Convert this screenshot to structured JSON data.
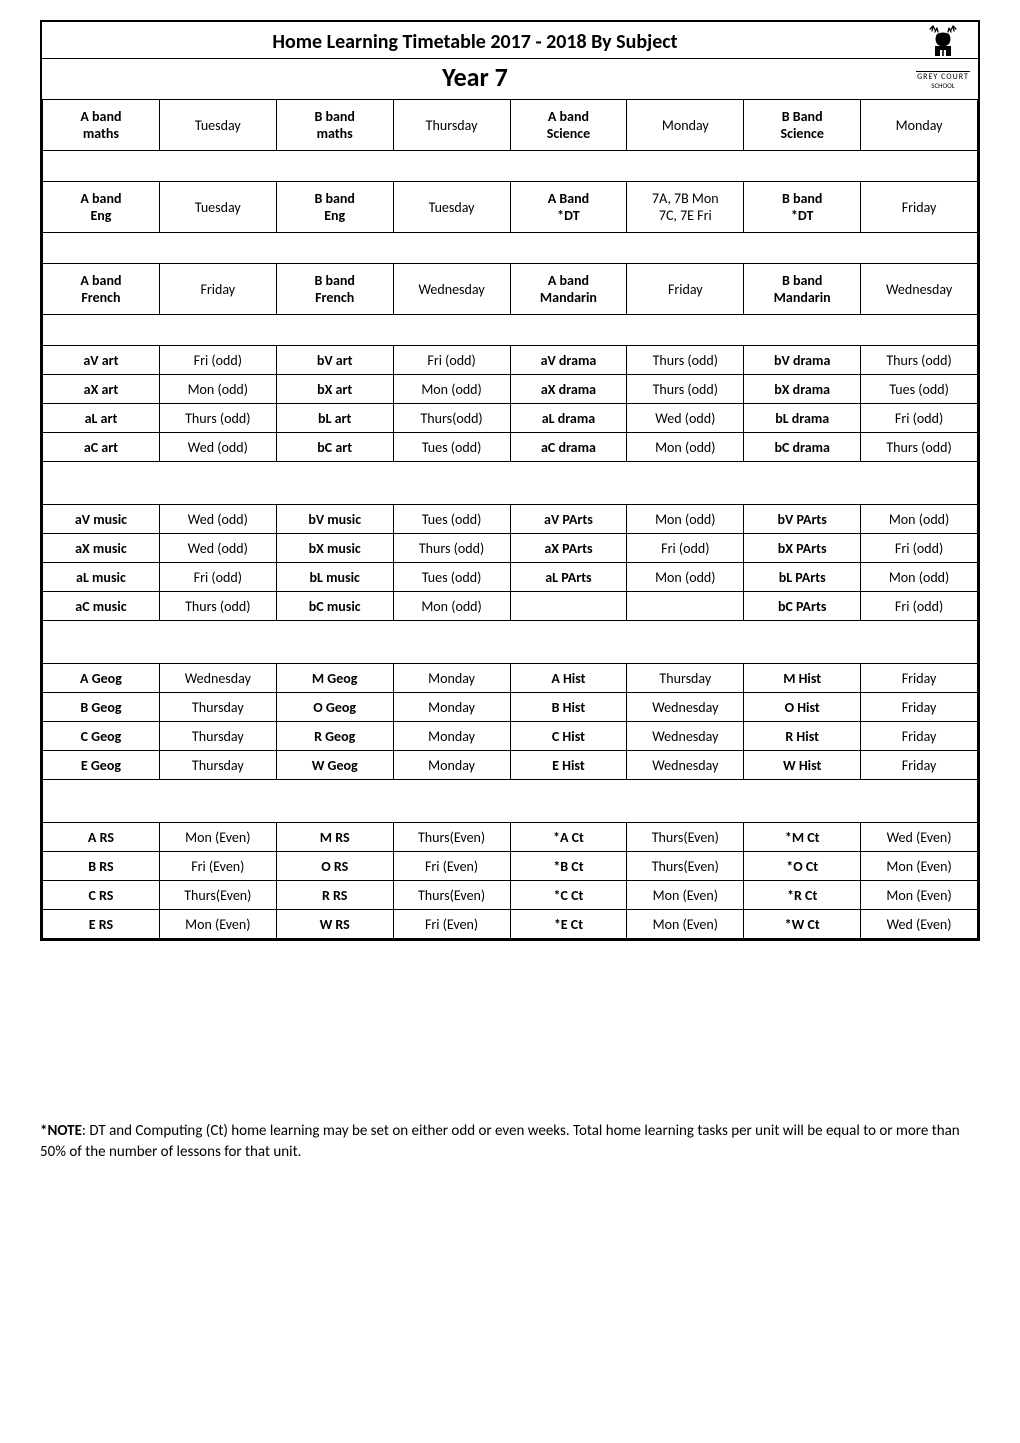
{
  "header": {
    "title": "Home Learning Timetable 2017 - 2018  By Subject",
    "year": "Year 7",
    "logo": {
      "grey_court": "GREY COURT",
      "school": "SCHOOL"
    }
  },
  "s1": {
    "r": [
      "A band maths",
      "Tuesday",
      "B band maths",
      "Thursday",
      "A band Science",
      "Monday",
      "B Band Science",
      "Monday"
    ]
  },
  "s2": {
    "r": [
      "A band Eng",
      "Tuesday",
      "B band Eng",
      "Tuesday",
      "A Band *DT",
      "7A, 7B  Mon 7C, 7E  Fri",
      "B band *DT",
      "Friday"
    ]
  },
  "s3": {
    "r": [
      "A band French",
      "Friday",
      "B band French",
      "Wednesday",
      "A band Mandarin",
      "Friday",
      "B band Mandarin",
      "Wednesday"
    ]
  },
  "s4": {
    "rows": [
      [
        "aV  art",
        "Fri (odd)",
        "bV  art",
        "Fri (odd)",
        "aV  drama",
        "Thurs (odd)",
        "bV  drama",
        "Thurs (odd)"
      ],
      [
        "aX art",
        "Mon (odd)",
        "bX art",
        "Mon (odd)",
        "aX drama",
        "Thurs (odd)",
        "bX drama",
        "Tues (odd)"
      ],
      [
        "aL art",
        "Thurs (odd)",
        "bL art",
        "Thurs(odd)",
        "aL drama",
        "Wed (odd)",
        "bL drama",
        "Fri (odd)"
      ],
      [
        "aC art",
        "Wed (odd)",
        "bC art",
        "Tues (odd)",
        "aC drama",
        "Mon (odd)",
        "bC drama",
        "Thurs (odd)"
      ]
    ]
  },
  "s5": {
    "rows": [
      [
        "aV  music",
        "Wed (odd)",
        "bV  music",
        "Tues (odd)",
        "aV PArts",
        "Mon (odd)",
        "bV PArts",
        "Mon (odd)"
      ],
      [
        "aX  music",
        "Wed (odd)",
        "bX  music",
        "Thurs (odd)",
        "aX PArts",
        "Fri (odd)",
        "bX PArts",
        "Fri (odd)"
      ],
      [
        "aL music",
        "Fri (odd)",
        "bL music",
        "Tues (odd)",
        "aL PArts",
        "Mon (odd)",
        "bL PArts",
        "Mon (odd)"
      ],
      [
        "aC music",
        "Thurs (odd)",
        "bC music",
        "Mon (odd)",
        "",
        "",
        "bC PArts",
        "Fri (odd)"
      ]
    ]
  },
  "s6": {
    "rows": [
      [
        "A Geog",
        "Wednesday",
        "M Geog",
        "Monday",
        "A Hist",
        "Thursday",
        "M Hist",
        "Friday"
      ],
      [
        "B Geog",
        "Thursday",
        "O  Geog",
        "Monday",
        "B Hist",
        "Wednesday",
        "O Hist",
        "Friday"
      ],
      [
        "C Geog",
        "Thursday",
        "R Geog",
        "Monday",
        "C Hist",
        "Wednesday",
        "R Hist",
        "Friday"
      ],
      [
        "E  Geog",
        "Thursday",
        "W Geog",
        "Monday",
        "E Hist",
        "Wednesday",
        "W Hist",
        "Friday"
      ]
    ]
  },
  "s7": {
    "rows": [
      [
        "A RS",
        "Mon (Even)",
        "M RS",
        "Thurs(Even)",
        "*A Ct",
        "Thurs(Even)",
        "*M Ct",
        "Wed (Even)"
      ],
      [
        "B RS",
        "Fri (Even)",
        "O  RS",
        "Fri (Even)",
        "*B Ct",
        "Thurs(Even)",
        "*O Ct",
        "Mon (Even)"
      ],
      [
        "C RS",
        "Thurs(Even)",
        "R RS",
        "Thurs(Even)",
        "*C Ct",
        "Mon (Even)",
        "*R Ct",
        "Mon (Even)"
      ],
      [
        "E  RS",
        "Mon (Even)",
        "W RS",
        "Fri (Even)",
        "*E Ct",
        "Mon (Even)",
        "*W Ct",
        "Wed (Even)"
      ]
    ]
  },
  "note": "*NOTE:  DT and Computing (Ct) home learning may be set on either odd or even weeks.  Total home learning tasks per unit will be equal to or more than 50% of the number of lessons for that unit.",
  "bold_cols": [
    0,
    2,
    4,
    6
  ]
}
